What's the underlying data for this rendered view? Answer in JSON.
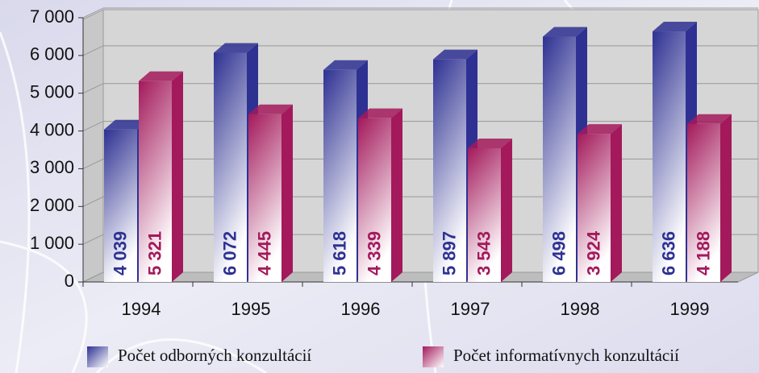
{
  "chart_data": {
    "type": "bar3d",
    "categories": [
      "1994",
      "1995",
      "1996",
      "1997",
      "1998",
      "1999"
    ],
    "series": [
      {
        "name": "Počet odborných konzultácií",
        "color": "#2e3192",
        "values": [
          4039,
          6072,
          5618,
          5897,
          6498,
          6636
        ],
        "value_labels": [
          "4 039",
          "6 072",
          "5 618",
          "5 897",
          "6 498",
          "6 636"
        ]
      },
      {
        "name": "Počet informatívnych konzultácií",
        "color": "#a3195b",
        "values": [
          5321,
          4445,
          4339,
          3543,
          3924,
          4188
        ],
        "value_labels": [
          "5 321",
          "4 445",
          "4 339",
          "3 543",
          "3 924",
          "4 188"
        ]
      }
    ],
    "ylim": [
      0,
      7000
    ],
    "yticks": [
      {
        "value": 0,
        "label": "0"
      },
      {
        "value": 1000,
        "label": "1 000"
      },
      {
        "value": 2000,
        "label": "2 000"
      },
      {
        "value": 3000,
        "label": "3 000"
      },
      {
        "value": 4000,
        "label": "4 000"
      },
      {
        "value": 5000,
        "label": "5 000"
      },
      {
        "value": 6000,
        "label": "6 000"
      },
      {
        "value": 7000,
        "label": "7 000"
      }
    ],
    "grid": true
  }
}
